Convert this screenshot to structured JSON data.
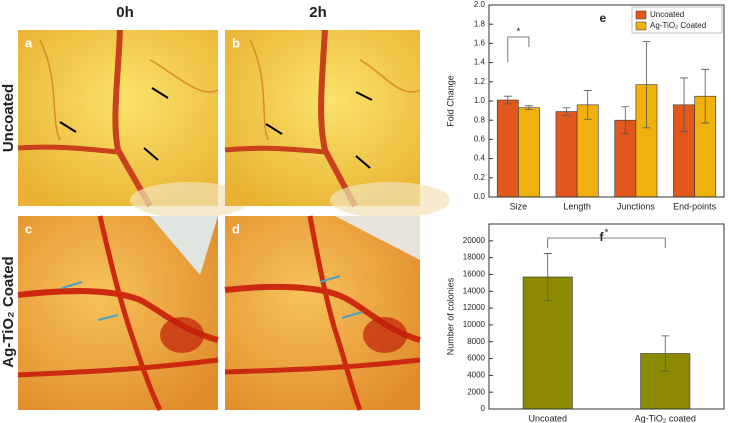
{
  "panels": {
    "columns": [
      "0h",
      "2h"
    ],
    "rows": [
      "Uncoated",
      "Ag-TiO₂ Coated"
    ],
    "labels": [
      "a",
      "b",
      "c",
      "d"
    ]
  },
  "chart_data": [
    {
      "type": "bar",
      "panel_label": "e",
      "ylabel": "Fold Change",
      "categories": [
        "Size",
        "Length",
        "Junctions",
        "End-points"
      ],
      "series": [
        {
          "name": "Uncoated",
          "color": "#e2571c",
          "values": [
            1.01,
            0.89,
            0.8,
            0.96
          ],
          "errors": [
            0.04,
            0.04,
            0.14,
            0.28
          ]
        },
        {
          "name": "Ag-TiO₂ Coated",
          "color": "#f0b10e",
          "values": [
            0.93,
            0.96,
            1.17,
            1.05
          ],
          "errors": [
            0.02,
            0.15,
            0.45,
            0.28
          ]
        }
      ],
      "ylim": [
        0,
        2.0
      ],
      "yticks": [
        {
          "value": 0,
          "label": "0.0"
        },
        {
          "value": 0.2,
          "label": "0.2"
        },
        {
          "value": 0.4,
          "label": "0.4"
        },
        {
          "value": 0.6,
          "label": "0.6"
        },
        {
          "value": 0.8,
          "label": "0.8"
        },
        {
          "value": 1.0,
          "label": "1.0"
        },
        {
          "value": 1.2,
          "label": "1.2"
        },
        {
          "value": 1.4,
          "label": "1.4"
        },
        {
          "value": 1.6,
          "label": "1.6"
        },
        {
          "value": 1.8,
          "label": "1.8"
        },
        {
          "value": 2.0,
          "label": "2.0"
        }
      ],
      "annotations": [
        "*"
      ],
      "legend": "top-right"
    },
    {
      "type": "bar",
      "panel_label": "f",
      "ylabel": "Number of colonies",
      "categories": [
        "Uncoated",
        "Ag-TiO₂ coated"
      ],
      "series": [
        {
          "color": "#8c8a00",
          "values": [
            15700,
            6600
          ],
          "errors": [
            2800,
            2100
          ]
        }
      ],
      "ylim": [
        0,
        22000
      ],
      "yticks": [
        0,
        2000,
        4000,
        6000,
        8000,
        10000,
        12000,
        14000,
        16000,
        18000,
        20000
      ],
      "annotations": [
        "*"
      ]
    }
  ]
}
